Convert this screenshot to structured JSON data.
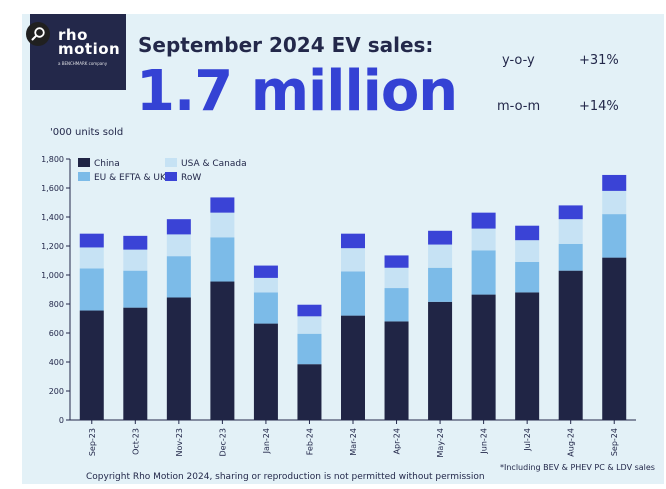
{
  "header": {
    "logo_line1": "rho",
    "logo_line2": "motion",
    "logo_tagline": "a BENCHMARK company",
    "title": "September 2024 EV sales:",
    "big_number": "1.7 million",
    "stats": [
      {
        "label": "y-o-y",
        "value": "+31%"
      },
      {
        "label": "m-o-m",
        "value": "+14%"
      }
    ]
  },
  "footer": {
    "copyright": "Copyright Rho Motion 2024, sharing or reproduction is not permitted without permission",
    "footnote": "*Including BEV & PHEV PC & LDV sales"
  },
  "chart_data": {
    "type": "bar",
    "stacked": true,
    "ylabel": "'000 units sold",
    "ylim": [
      0,
      1800
    ],
    "yticks": [
      "0",
      "200",
      "400",
      "600",
      "800",
      "1,000",
      "1,200",
      "1,400",
      "1,600",
      "1,800"
    ],
    "categories": [
      "Sep-23",
      "Oct-23",
      "Nov-23",
      "Dec-23",
      "Jan-24",
      "Feb-24",
      "Mar-24",
      "Apr-24",
      "May-24",
      "Jun-24",
      "Jul-24",
      "Aug-24",
      "Sep-24"
    ],
    "series": [
      {
        "name": "China",
        "color": "#202545",
        "values": [
          755,
          775,
          845,
          955,
          665,
          385,
          720,
          680,
          815,
          865,
          880,
          1030,
          1120
        ]
      },
      {
        "name": "EU & EFTA & UK",
        "color": "#7cbbe8",
        "values": [
          290,
          255,
          285,
          305,
          215,
          210,
          305,
          230,
          235,
          305,
          210,
          185,
          300
        ]
      },
      {
        "name": "USA & Canada",
        "color": "#c6e2f4",
        "values": [
          145,
          145,
          150,
          170,
          100,
          120,
          160,
          140,
          160,
          150,
          150,
          170,
          160
        ]
      },
      {
        "name": "RoW",
        "color": "#3a43d6",
        "values": [
          95,
          95,
          105,
          105,
          85,
          80,
          100,
          85,
          95,
          110,
          100,
          95,
          110
        ]
      }
    ],
    "legend_position": "top-left",
    "grid": false
  }
}
